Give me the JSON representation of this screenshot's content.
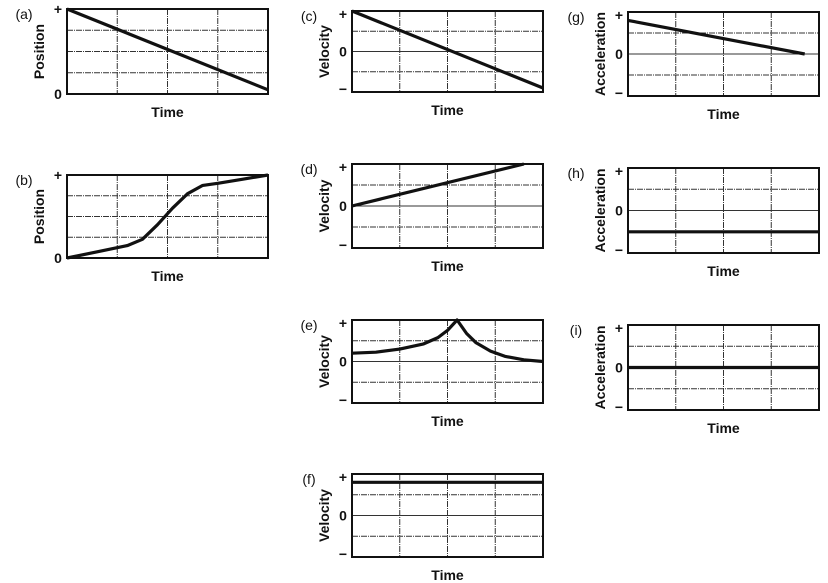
{
  "chart_data": [
    {
      "id": "a",
      "panel_label": "(a)",
      "type": "line",
      "xlabel": "Time",
      "ylabel": "Position",
      "y_ticks": [
        "0",
        "+"
      ],
      "ylim": [
        0,
        4
      ],
      "xlim": [
        0,
        4
      ],
      "grid": true,
      "series": [
        {
          "x": [
            0,
            4
          ],
          "y": [
            4,
            0.2
          ]
        }
      ]
    },
    {
      "id": "b",
      "panel_label": "(b)",
      "type": "line",
      "xlabel": "Time",
      "ylabel": "Position",
      "y_ticks": [
        "0",
        "+"
      ],
      "ylim": [
        0,
        4
      ],
      "xlim": [
        0,
        4
      ],
      "grid": true,
      "series": [
        {
          "x": [
            0,
            0.6,
            1.2,
            1.5,
            1.8,
            2.1,
            2.4,
            2.7,
            3,
            3.5,
            4
          ],
          "y": [
            0,
            0.3,
            0.6,
            0.9,
            1.6,
            2.4,
            3.1,
            3.5,
            3.6,
            3.8,
            4
          ]
        }
      ]
    },
    {
      "id": "c",
      "panel_label": "(c)",
      "type": "line",
      "xlabel": "Time",
      "ylabel": "Velocity",
      "y_ticks": [
        "−",
        "0",
        "+"
      ],
      "ylim": [
        -2,
        2
      ],
      "xlim": [
        0,
        4
      ],
      "grid": true,
      "series": [
        {
          "x": [
            0,
            4
          ],
          "y": [
            2,
            -1.8
          ]
        }
      ]
    },
    {
      "id": "d",
      "panel_label": "(d)",
      "type": "line",
      "xlabel": "Time",
      "ylabel": "Velocity",
      "y_ticks": [
        "−",
        "0",
        "+"
      ],
      "ylim": [
        -2,
        2
      ],
      "xlim": [
        0,
        4
      ],
      "grid": true,
      "series": [
        {
          "x": [
            0,
            3.6
          ],
          "y": [
            0,
            2
          ]
        }
      ]
    },
    {
      "id": "e",
      "panel_label": "(e)",
      "type": "line",
      "xlabel": "Time",
      "ylabel": "Velocity",
      "y_ticks": [
        "−",
        "0",
        "+"
      ],
      "ylim": [
        -2,
        2
      ],
      "xlim": [
        0,
        4
      ],
      "grid": true,
      "series": [
        {
          "x": [
            0,
            0.5,
            1,
            1.5,
            1.8,
            2,
            2.2,
            2.4,
            2.6,
            2.9,
            3.2,
            3.6,
            4
          ],
          "y": [
            0.4,
            0.45,
            0.6,
            0.85,
            1.15,
            1.5,
            2,
            1.35,
            0.9,
            0.5,
            0.25,
            0.08,
            0
          ]
        }
      ]
    },
    {
      "id": "f",
      "panel_label": "(f)",
      "type": "line",
      "xlabel": "Time",
      "ylabel": "Velocity",
      "y_ticks": [
        "−",
        "0",
        "+"
      ],
      "ylim": [
        -2,
        2
      ],
      "xlim": [
        0,
        4
      ],
      "grid": true,
      "series": [
        {
          "x": [
            0,
            4
          ],
          "y": [
            1.6,
            1.6
          ]
        }
      ]
    },
    {
      "id": "g",
      "panel_label": "(g)",
      "type": "line",
      "xlabel": "Time",
      "ylabel": "Acceleration",
      "y_ticks": [
        "−",
        "0",
        "+"
      ],
      "ylim": [
        -2,
        2
      ],
      "xlim": [
        0,
        4
      ],
      "grid": true,
      "series": [
        {
          "x": [
            0,
            3.7
          ],
          "y": [
            1.6,
            0
          ]
        }
      ]
    },
    {
      "id": "h",
      "panel_label": "(h)",
      "type": "line",
      "xlabel": "Time",
      "ylabel": "Acceleration",
      "y_ticks": [
        "−",
        "0",
        "+"
      ],
      "ylim": [
        -2,
        2
      ],
      "xlim": [
        0,
        4
      ],
      "grid": true,
      "series": [
        {
          "x": [
            0,
            4
          ],
          "y": [
            -1,
            -1
          ]
        }
      ]
    },
    {
      "id": "i",
      "panel_label": "(i)",
      "type": "line",
      "xlabel": "Time",
      "ylabel": "Acceleration",
      "y_ticks": [
        "−",
        "0",
        "+"
      ],
      "ylim": [
        -2,
        2
      ],
      "xlim": [
        0,
        4
      ],
      "grid": true,
      "series": [
        {
          "x": [
            0,
            4
          ],
          "y": [
            0,
            0
          ]
        }
      ]
    }
  ]
}
